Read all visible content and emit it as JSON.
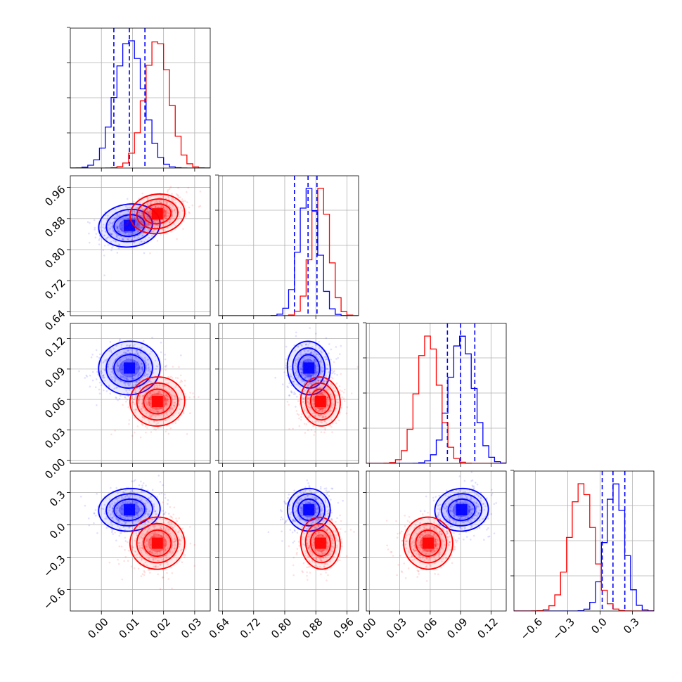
{
  "chart_data": {
    "type": "corner",
    "title": "",
    "colors": {
      "blue": "#0000ff",
      "red": "#ff0000"
    },
    "series": [
      {
        "name": "",
        "color": "#0000ff",
        "mean": [
          0.009,
          0.862,
          0.091,
          0.14
        ],
        "std": [
          0.0045,
          0.025,
          0.012,
          0.09
        ],
        "quantiles": [
          [
            0.004,
            0.009,
            0.014
          ],
          [
            0.825,
            0.86,
            0.883
          ],
          [
            0.077,
            0.09,
            0.104
          ],
          [
            0.02,
            0.12,
            0.23
          ]
        ]
      },
      {
        "name": "",
        "color": "#ff0000",
        "mean": [
          0.018,
          0.892,
          0.058,
          -0.17
        ],
        "std": [
          0.004,
          0.023,
          0.011,
          0.11
        ],
        "quantiles": null
      }
    ],
    "params": [
      {
        "label": "",
        "range": [
          -0.01,
          0.035
        ],
        "ticks": [
          "0.00",
          "0.01",
          "0.02",
          "0.03"
        ],
        "tick_values": [
          0.0,
          0.01,
          0.02,
          0.03
        ]
      },
      {
        "label": "",
        "range": [
          0.63,
          0.99
        ],
        "ticks": [
          "0.64",
          "0.72",
          "0.80",
          "0.88",
          "0.96"
        ],
        "tick_values": [
          0.64,
          0.72,
          0.8,
          0.88,
          0.96
        ]
      },
      {
        "label": "",
        "range": [
          -0.003,
          0.135
        ],
        "ticks": [
          "0.00",
          "0.03",
          "0.06",
          "0.09",
          "0.12"
        ],
        "tick_values": [
          0.0,
          0.03,
          0.06,
          0.09,
          0.12
        ]
      },
      {
        "label": "",
        "range": [
          -0.8,
          0.5
        ],
        "ticks": [
          "−0.6",
          "−0.3",
          "0.0",
          "0.3"
        ],
        "tick_values": [
          -0.6,
          -0.3,
          0.0,
          0.3
        ]
      }
    ],
    "y_tick_labels": {
      "1": [
        "0.64",
        "0.72",
        "0.80",
        "0.88",
        "0.96"
      ],
      "2": [
        "0.00",
        "0.03",
        "0.06",
        "0.09",
        "0.12"
      ],
      "3": [
        "−0.6",
        "−0.3",
        "0.0",
        "0.3"
      ]
    },
    "grid": true,
    "legend": "none"
  }
}
